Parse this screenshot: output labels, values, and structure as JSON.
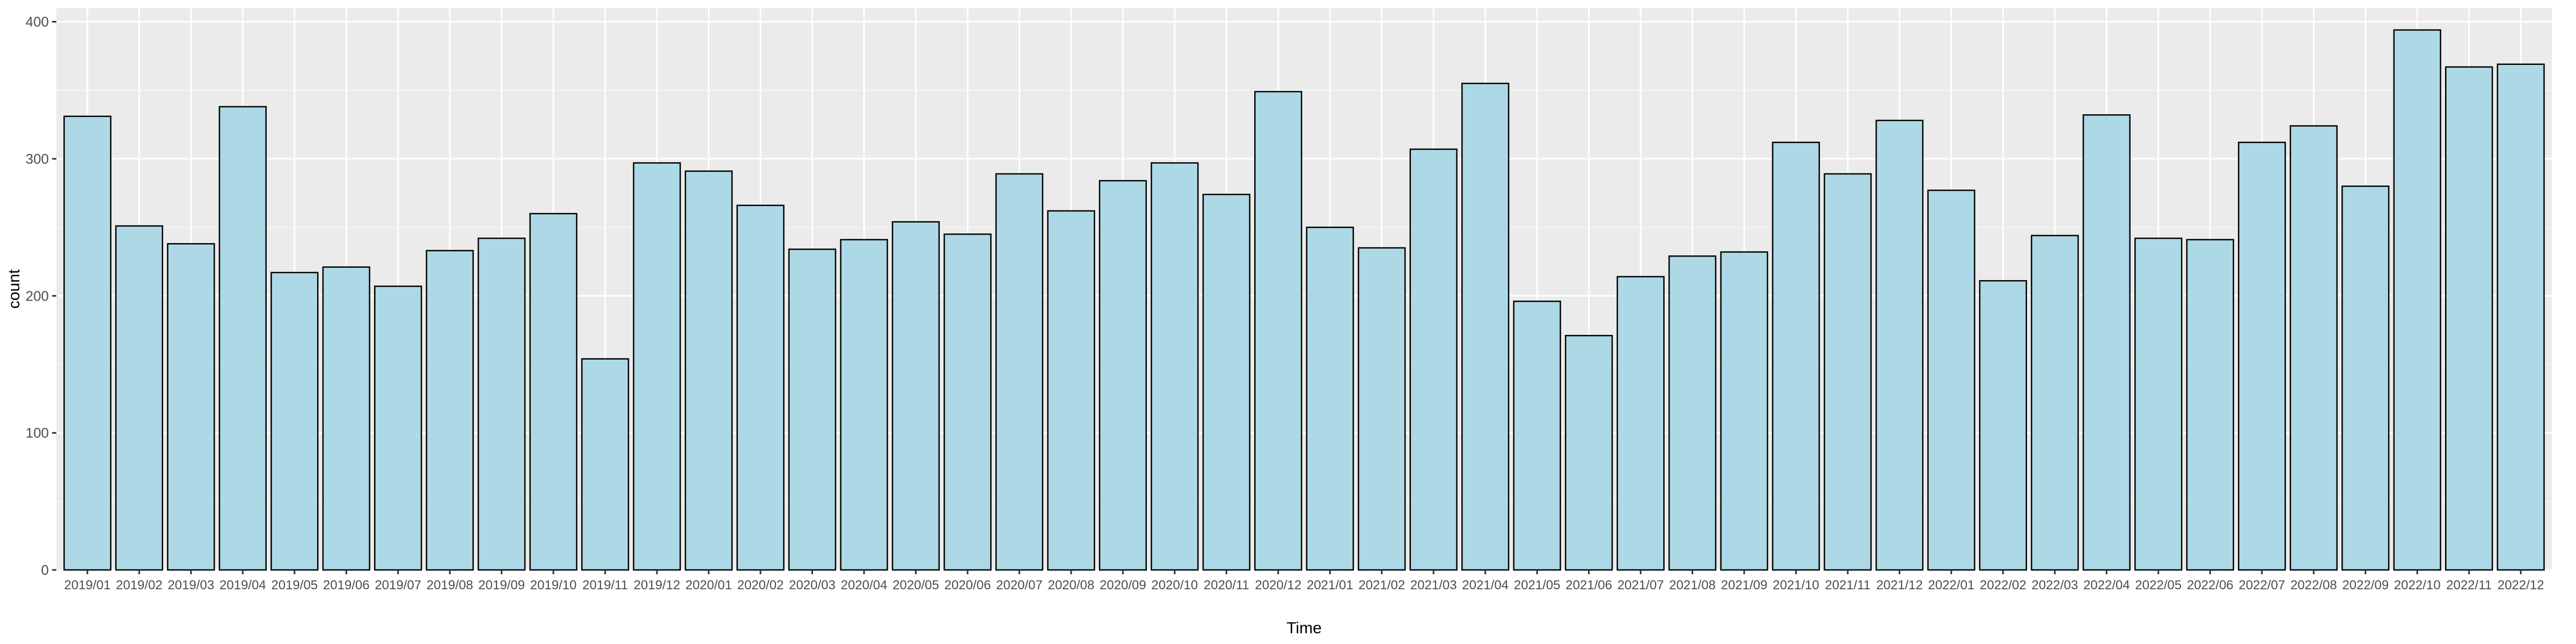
{
  "chart_data": {
    "type": "bar",
    "title": "",
    "xlabel": "Time",
    "ylabel": "count",
    "ylim": [
      0,
      410
    ],
    "yticks": [
      0,
      100,
      200,
      300,
      400
    ],
    "grid": true,
    "legend": "none",
    "colors": {
      "panel_background": "#ebebeb",
      "grid_major": "#ffffff",
      "grid_minor": "#f5f5f5",
      "bar_fill": "#add8e6",
      "bar_outline": "#000000"
    },
    "categories": [
      "2019/01",
      "2019/02",
      "2019/03",
      "2019/04",
      "2019/05",
      "2019/06",
      "2019/07",
      "2019/08",
      "2019/09",
      "2019/10",
      "2019/11",
      "2019/12",
      "2020/01",
      "2020/02",
      "2020/03",
      "2020/04",
      "2020/05",
      "2020/06",
      "2020/07",
      "2020/08",
      "2020/09",
      "2020/10",
      "2020/11",
      "2020/12",
      "2021/01",
      "2021/02",
      "2021/03",
      "2021/04",
      "2021/05",
      "2021/06",
      "2021/07",
      "2021/08",
      "2021/09",
      "2021/10",
      "2021/11",
      "2021/12",
      "2022/01",
      "2022/02",
      "2022/03",
      "2022/04",
      "2022/05",
      "2022/06",
      "2022/07",
      "2022/08",
      "2022/09",
      "2022/10",
      "2022/11",
      "2022/12"
    ],
    "values": [
      331,
      251,
      238,
      338,
      217,
      221,
      207,
      233,
      242,
      260,
      154,
      297,
      291,
      266,
      234,
      241,
      254,
      245,
      289,
      262,
      284,
      297,
      274,
      349,
      250,
      235,
      307,
      355,
      196,
      171,
      214,
      229,
      232,
      312,
      289,
      328,
      277,
      211,
      244,
      332,
      242,
      241,
      312,
      324,
      280,
      394,
      367,
      369
    ]
  }
}
